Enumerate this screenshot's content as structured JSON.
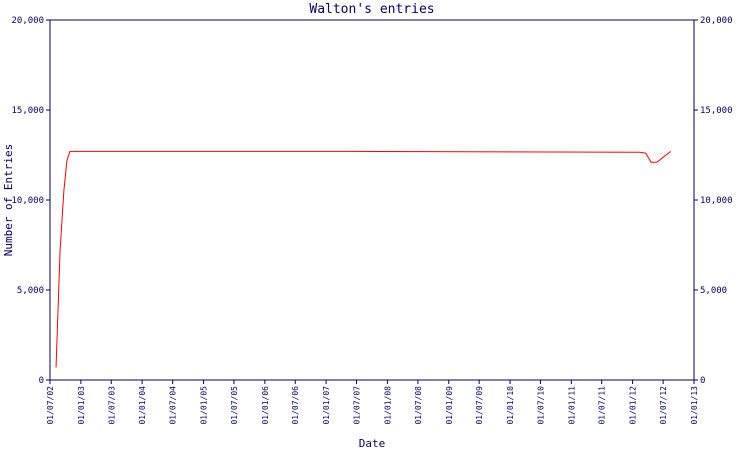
{
  "chart_data": {
    "type": "line",
    "title": "Walton's entries",
    "x_label": "Date",
    "y_label": "Number of Entries",
    "x": [
      "06/08/02",
      "30/08/02",
      "22/09/02",
      "10/10/02",
      "28/10/02",
      "20/05/07",
      "14/02/12",
      "20/03/12",
      "20/04/12",
      "25/05/12",
      "15/08/12"
    ],
    "series": [
      {
        "name": "Entries",
        "color": "#ff0000",
        "values": [
          700,
          7200,
          10550,
          12200,
          12700,
          12700,
          12650,
          12600,
          12100,
          12100,
          12700
        ]
      }
    ],
    "xlim": [
      "01/07/02",
      "01/01/13"
    ],
    "xticks": [
      "01/07/02",
      "01/01/03",
      "01/07/03",
      "01/01/04",
      "01/07/04",
      "01/01/05",
      "01/07/05",
      "01/01/06",
      "01/07/06",
      "01/01/07",
      "01/07/07",
      "01/01/08",
      "01/07/08",
      "01/01/09",
      "01/07/09",
      "01/01/10",
      "01/07/10",
      "01/01/11",
      "01/07/11",
      "01/01/12",
      "01/07/12",
      "01/01/13"
    ],
    "ylim": [
      0,
      20000
    ],
    "yticks": [
      0,
      {
        "value": 5000,
        "label": "5,000"
      },
      {
        "value": 10000,
        "label": "10,000"
      },
      {
        "value": 15000,
        "label": "15,000"
      },
      {
        "value": 20000,
        "label": "20,000"
      }
    ],
    "y2lim": [
      0,
      20000
    ],
    "y2ticks": [
      0,
      {
        "value": 5000,
        "label": "5,000"
      },
      {
        "value": 10000,
        "label": "10,000"
      },
      {
        "value": 15000,
        "label": "15,000"
      },
      {
        "value": 20000,
        "label": "20,000"
      }
    ]
  }
}
